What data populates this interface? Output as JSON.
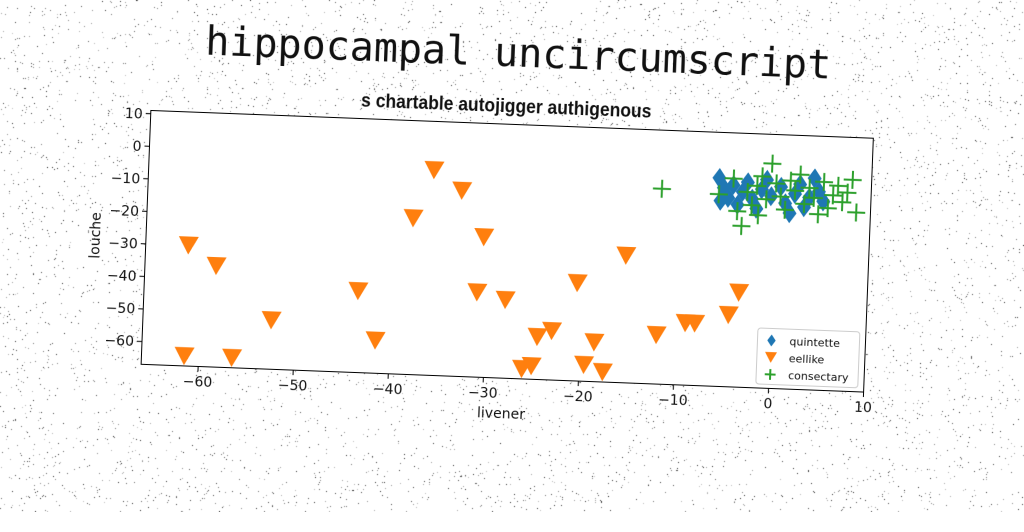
{
  "chart_data": {
    "type": "scatter",
    "title": "hippocampal uncircumscript",
    "subtitle": "s chartable autojigger authigenous",
    "xlabel": "livener",
    "ylabel": "louche",
    "xlim": [
      -66,
      10
    ],
    "ylim": [
      -67,
      11
    ],
    "xticks": [
      -60,
      -50,
      -40,
      -30,
      -20,
      -10,
      0,
      10
    ],
    "yticks": [
      10,
      0,
      -10,
      -20,
      -30,
      -40,
      -50,
      -60
    ],
    "grid": false,
    "legend_position": "bottom-right",
    "series": [
      {
        "name": "quintette",
        "color": "#1f77b4",
        "marker": "diamond",
        "points": [
          [
            -6.0,
            -3.0
          ],
          [
            -5.5,
            -6.0
          ],
          [
            -5.0,
            -9.0
          ],
          [
            -4.5,
            -5.0
          ],
          [
            -4.0,
            -11.0
          ],
          [
            -3.5,
            -7.0
          ],
          [
            -3.0,
            -4.0
          ],
          [
            -2.5,
            -9.0
          ],
          [
            -2.0,
            -12.0
          ],
          [
            -1.5,
            -6.0
          ],
          [
            -1.0,
            -3.0
          ],
          [
            0.5,
            -5.0
          ],
          [
            1.0,
            -10.0
          ],
          [
            1.5,
            -13.0
          ],
          [
            2.0,
            -7.0
          ],
          [
            2.5,
            -4.0
          ],
          [
            3.0,
            -11.0
          ],
          [
            3.5,
            -8.0
          ],
          [
            4.0,
            -2.0
          ],
          [
            4.5,
            -6.0
          ],
          [
            5.0,
            -9.0
          ],
          [
            -5.8,
            -10.0
          ],
          [
            -0.5,
            -8.0
          ]
        ]
      },
      {
        "name": "eellike",
        "color": "#ff7f0e",
        "marker": "triangle_down",
        "points": [
          [
            -61.5,
            -30.0
          ],
          [
            -58.5,
            -36.0
          ],
          [
            -61.5,
            -64.0
          ],
          [
            -56.5,
            -64.0
          ],
          [
            -52.5,
            -52.0
          ],
          [
            -43.5,
            -42.0
          ],
          [
            -41.5,
            -57.0
          ],
          [
            -38.0,
            -19.0
          ],
          [
            -36.0,
            -4.0
          ],
          [
            -33.0,
            -10.0
          ],
          [
            -30.5,
            -24.0
          ],
          [
            -31.0,
            -41.0
          ],
          [
            -28.0,
            -43.0
          ],
          [
            -26.0,
            -64.0
          ],
          [
            -25.0,
            -63.0
          ],
          [
            -24.5,
            -54.0
          ],
          [
            -23.0,
            -52.0
          ],
          [
            -20.5,
            -37.0
          ],
          [
            -19.5,
            -62.0
          ],
          [
            -18.5,
            -55.0
          ],
          [
            -17.5,
            -64.0
          ],
          [
            -15.5,
            -28.0
          ],
          [
            -12.0,
            -52.0
          ],
          [
            -9.0,
            -48.0
          ],
          [
            -8.0,
            -48.0
          ],
          [
            -4.5,
            -45.0
          ],
          [
            -3.5,
            -38.0
          ]
        ]
      },
      {
        "name": "consectary",
        "color": "#2ca02c",
        "marker": "plus",
        "points": [
          [
            -12.0,
            -7.0
          ],
          [
            -6.0,
            -8.0
          ],
          [
            -4.5,
            -3.0
          ],
          [
            -4.0,
            -13.0
          ],
          [
            -3.5,
            -17.5
          ],
          [
            -3.0,
            -7.0
          ],
          [
            -2.5,
            -11.0
          ],
          [
            -2.0,
            -5.0
          ],
          [
            -1.5,
            -2.0
          ],
          [
            -1.0,
            -9.0
          ],
          [
            0.0,
            -4.0
          ],
          [
            0.5,
            -8.0
          ],
          [
            1.0,
            -12.0
          ],
          [
            1.5,
            -3.0
          ],
          [
            2.0,
            -6.0
          ],
          [
            2.5,
            -1.0
          ],
          [
            3.0,
            -10.0
          ],
          [
            3.5,
            -5.0
          ],
          [
            4.0,
            -8.0
          ],
          [
            5.0,
            -3.0
          ],
          [
            5.5,
            -11.0
          ],
          [
            6.0,
            -7.0
          ],
          [
            6.5,
            -4.0
          ],
          [
            7.0,
            -9.0
          ],
          [
            7.5,
            -6.0
          ],
          [
            8.0,
            -2.0
          ],
          [
            8.5,
            -12.0
          ],
          [
            -0.5,
            2.0
          ],
          [
            -1.8,
            -14.0
          ],
          [
            4.5,
            -13.0
          ]
        ]
      }
    ]
  }
}
